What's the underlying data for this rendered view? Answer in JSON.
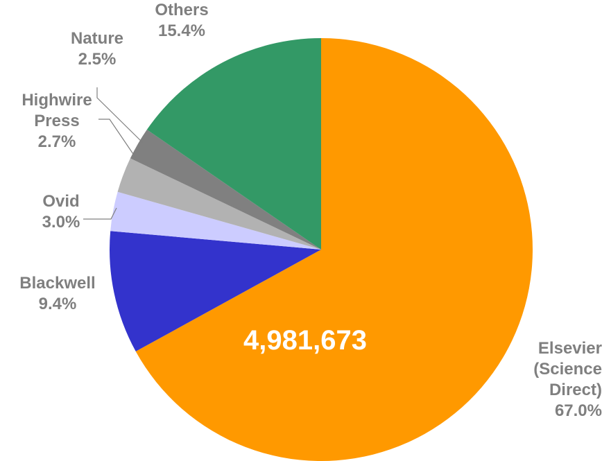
{
  "chart_data": {
    "type": "pie",
    "title": "",
    "center_label": "4,981,673",
    "slices": [
      {
        "name": "Elsevier (Science Direct)",
        "label_lines": [
          "Elsevier",
          "(Science",
          "Direct)"
        ],
        "value": 67.0,
        "percent_label": "67.0%",
        "color": "#FF9900"
      },
      {
        "name": "Blackwell",
        "label_lines": [
          "Blackwell"
        ],
        "value": 9.4,
        "percent_label": "9.4%",
        "color": "#3333CC"
      },
      {
        "name": "Ovid",
        "label_lines": [
          "Ovid"
        ],
        "value": 3.0,
        "percent_label": "3.0%",
        "color": "#CCCCFF"
      },
      {
        "name": "Highwire Press",
        "label_lines": [
          "Highwire",
          "Press"
        ],
        "value": 2.7,
        "percent_label": "2.7%",
        "color": "#B2B2B2"
      },
      {
        "name": "Nature",
        "label_lines": [
          "Nature"
        ],
        "value": 2.5,
        "percent_label": "2.5%",
        "color": "#808080"
      },
      {
        "name": "Others",
        "label_lines": [
          "Others"
        ],
        "value": 15.4,
        "percent_label": "15.4%",
        "color": "#339966"
      }
    ]
  }
}
